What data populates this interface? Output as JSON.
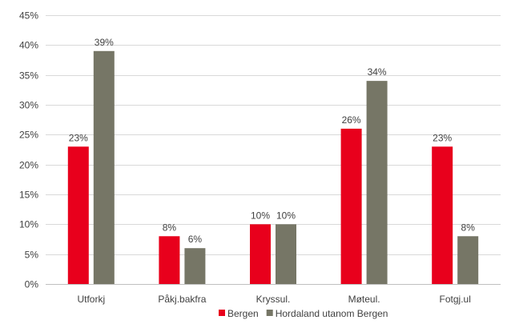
{
  "chart_data": {
    "type": "bar",
    "title": "",
    "xlabel": "",
    "ylabel": "",
    "categories": [
      "Utforkj",
      "Påkj.bakfra",
      "Kryssul.",
      "Møteul.",
      "Fotgj.ul"
    ],
    "series": [
      {
        "name": "Bergen",
        "color": "#E8001C",
        "values": [
          23,
          8,
          10,
          26,
          23
        ],
        "labels": [
          "23%",
          "8%",
          "10%",
          "26%",
          "23%"
        ]
      },
      {
        "name": "Hordaland utanom Bergen",
        "color": "#767666",
        "values": [
          39,
          6,
          10,
          34,
          8
        ],
        "labels": [
          "39%",
          "6%",
          "10%",
          "34%",
          "8%"
        ]
      }
    ],
    "y_ticks": [
      "0%",
      "5%",
      "10%",
      "15%",
      "20%",
      "25%",
      "30%",
      "35%",
      "40%",
      "45%"
    ],
    "ylim": [
      0,
      45
    ],
    "grid": true,
    "legend_position": "bottom"
  }
}
